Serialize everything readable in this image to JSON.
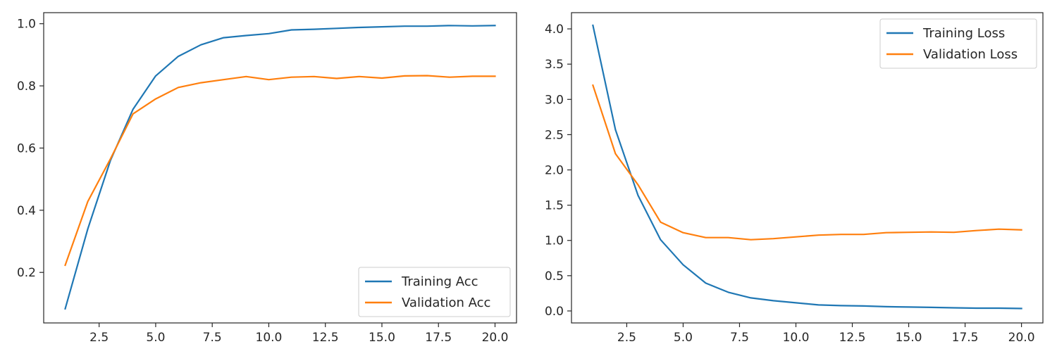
{
  "chart_data": [
    {
      "type": "line",
      "title": "",
      "xlabel": "",
      "ylabel": "",
      "xlim": [
        0.05,
        20.95
      ],
      "ylim": [
        0.0375,
        1.0355
      ],
      "xticks": [
        2.5,
        5.0,
        7.5,
        10.0,
        12.5,
        15.0,
        17.5,
        20.0
      ],
      "xtick_labels": [
        "2.5",
        "5.0",
        "7.5",
        "10.0",
        "12.5",
        "15.0",
        "17.5",
        "20.0"
      ],
      "yticks": [
        0.2,
        0.4,
        0.6,
        0.8,
        1.0
      ],
      "ytick_labels": [
        "0.2",
        "0.4",
        "0.6",
        "0.8",
        "1.0"
      ],
      "grid": false,
      "legend_position": "bottom-right",
      "x": [
        1,
        2,
        3,
        4,
        5,
        6,
        7,
        8,
        9,
        10,
        11,
        12,
        13,
        14,
        15,
        16,
        17,
        18,
        19,
        20
      ],
      "series": [
        {
          "name": "Training Acc",
          "color": "#1f77b4",
          "values": [
            0.083,
            0.34,
            0.56,
            0.725,
            0.832,
            0.895,
            0.932,
            0.955,
            0.962,
            0.968,
            0.98,
            0.982,
            0.985,
            0.988,
            0.99,
            0.992,
            0.992,
            0.994,
            0.993,
            0.994
          ]
        },
        {
          "name": "Validation Acc",
          "color": "#ff7f0e",
          "values": [
            0.223,
            0.428,
            0.565,
            0.71,
            0.758,
            0.795,
            0.81,
            0.82,
            0.83,
            0.82,
            0.828,
            0.83,
            0.824,
            0.83,
            0.825,
            0.832,
            0.833,
            0.828,
            0.831,
            0.831
          ]
        }
      ]
    },
    {
      "type": "line",
      "title": "",
      "xlabel": "",
      "ylabel": "",
      "xlim": [
        0.05,
        20.95
      ],
      "ylim": [
        -0.17,
        4.23
      ],
      "xticks": [
        2.5,
        5.0,
        7.5,
        10.0,
        12.5,
        15.0,
        17.5,
        20.0
      ],
      "xtick_labels": [
        "2.5",
        "5.0",
        "7.5",
        "10.0",
        "12.5",
        "15.0",
        "17.5",
        "20.0"
      ],
      "yticks": [
        0.0,
        0.5,
        1.0,
        1.5,
        2.0,
        2.5,
        3.0,
        3.5,
        4.0
      ],
      "ytick_labels": [
        "0.0",
        "0.5",
        "1.0",
        "1.5",
        "2.0",
        "2.5",
        "3.0",
        "3.5",
        "4.0"
      ],
      "grid": false,
      "legend_position": "top-right",
      "x": [
        1,
        2,
        3,
        4,
        5,
        6,
        7,
        8,
        9,
        10,
        11,
        12,
        13,
        14,
        15,
        16,
        17,
        18,
        19,
        20
      ],
      "series": [
        {
          "name": "Training Loss",
          "color": "#1f77b4",
          "values": [
            4.05,
            2.57,
            1.64,
            1.01,
            0.655,
            0.395,
            0.265,
            0.185,
            0.145,
            0.115,
            0.085,
            0.075,
            0.07,
            0.06,
            0.055,
            0.05,
            0.045,
            0.04,
            0.04,
            0.035
          ]
        },
        {
          "name": "Validation Loss",
          "color": "#ff7f0e",
          "values": [
            3.2,
            2.23,
            1.79,
            1.26,
            1.11,
            1.04,
            1.04,
            1.01,
            1.025,
            1.05,
            1.075,
            1.085,
            1.085,
            1.11,
            1.115,
            1.12,
            1.115,
            1.14,
            1.16,
            1.15
          ]
        }
      ]
    }
  ]
}
